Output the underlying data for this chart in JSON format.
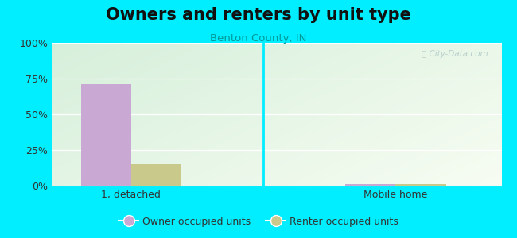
{
  "title": "Owners and renters by unit type",
  "subtitle": "Benton County, IN",
  "categories": [
    "1, detached",
    "Mobile home"
  ],
  "owner_values": [
    71.0,
    1.2
  ],
  "renter_values": [
    15.0,
    1.0
  ],
  "owner_color": "#c9a8d4",
  "renter_color": "#c8c98a",
  "owner_label": "Owner occupied units",
  "renter_label": "Renter occupied units",
  "ylim": [
    0,
    100
  ],
  "yticks": [
    0,
    25,
    50,
    75,
    100
  ],
  "yticklabels": [
    "0%",
    "25%",
    "50%",
    "75%",
    "100%"
  ],
  "bg_outer": "#00eeff",
  "watermark": "ⓘ City-Data.com",
  "bar_width": 0.38,
  "title_fontsize": 15,
  "subtitle_fontsize": 9.5,
  "subtitle_color": "#009999",
  "tick_fontsize": 9,
  "gradient_topleft": [
    0.84,
    0.94,
    0.86
  ],
  "gradient_bottomright": [
    0.97,
    0.99,
    0.95
  ],
  "group_positions": [
    0.5,
    2.5
  ],
  "xlim": [
    -0.1,
    3.3
  ]
}
